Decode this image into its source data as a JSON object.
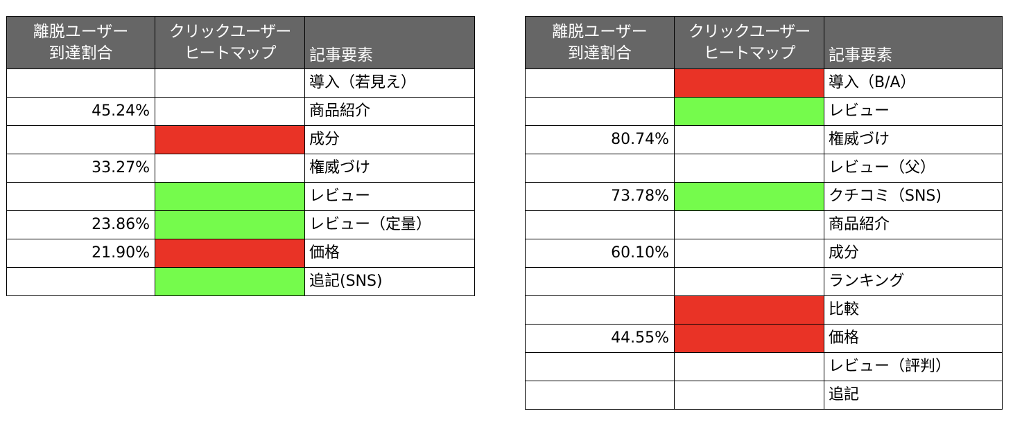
{
  "colors": {
    "header_bg": "#666666",
    "header_text": "#ffffff",
    "heat_red": "#e93326",
    "heat_green": "#75fb4c",
    "border": "#000000"
  },
  "headers": {
    "exit_rate": [
      "離脱ユーザー",
      "到達割合"
    ],
    "heatmap": [
      "クリックユーザー",
      "ヒートマップ"
    ],
    "element": "記事要素"
  },
  "tables": [
    {
      "rows": [
        {
          "exit_rate": "",
          "heat": "none",
          "element": "導入（若見え）"
        },
        {
          "exit_rate": "45.24%",
          "heat": "none",
          "element": "商品紹介"
        },
        {
          "exit_rate": "",
          "heat": "red",
          "element": "成分"
        },
        {
          "exit_rate": "33.27%",
          "heat": "none",
          "element": "権威づけ"
        },
        {
          "exit_rate": "",
          "heat": "green",
          "element": "レビュー"
        },
        {
          "exit_rate": "23.86%",
          "heat": "green",
          "element": "レビュー（定量）"
        },
        {
          "exit_rate": "21.90%",
          "heat": "red",
          "element": "価格"
        },
        {
          "exit_rate": "",
          "heat": "green",
          "element": "追記(SNS)"
        }
      ]
    },
    {
      "rows": [
        {
          "exit_rate": "",
          "heat": "red",
          "element": "導入（B/A）"
        },
        {
          "exit_rate": "",
          "heat": "green",
          "element": "レビュー"
        },
        {
          "exit_rate": "80.74%",
          "heat": "none",
          "element": "権威づけ"
        },
        {
          "exit_rate": "",
          "heat": "none",
          "element": "レビュー（父）"
        },
        {
          "exit_rate": "73.78%",
          "heat": "green",
          "element": "クチコミ（SNS)"
        },
        {
          "exit_rate": "",
          "heat": "none",
          "element": "商品紹介"
        },
        {
          "exit_rate": "60.10%",
          "heat": "none",
          "element": "成分"
        },
        {
          "exit_rate": "",
          "heat": "none",
          "element": "ランキング"
        },
        {
          "exit_rate": "",
          "heat": "red",
          "element": "比較"
        },
        {
          "exit_rate": "44.55%",
          "heat": "red",
          "element": "価格"
        },
        {
          "exit_rate": "",
          "heat": "none",
          "element": "レビュー（評判）"
        },
        {
          "exit_rate": "",
          "heat": "none",
          "element": "追記"
        }
      ]
    }
  ]
}
